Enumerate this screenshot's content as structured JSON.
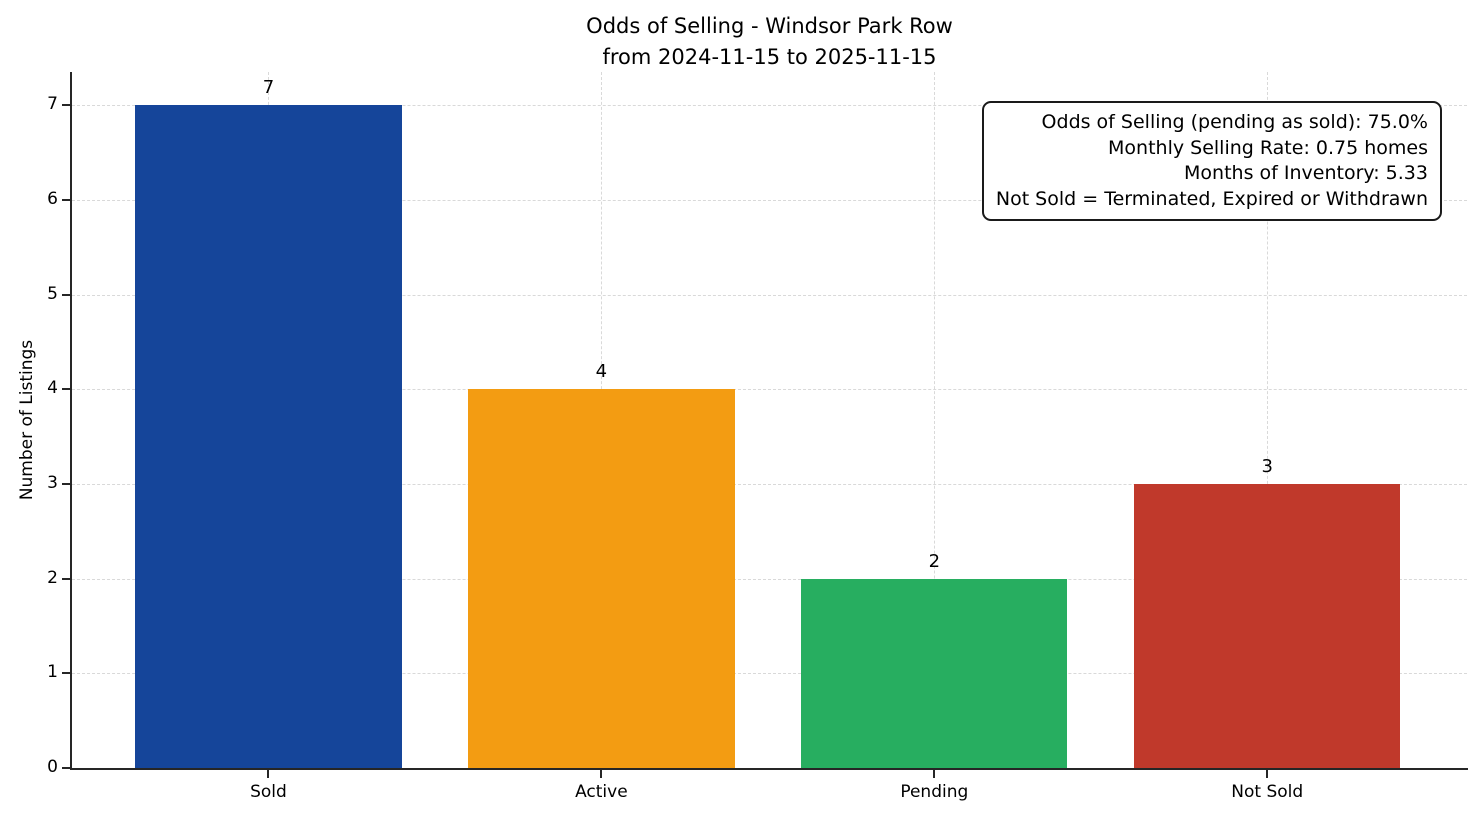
{
  "figure": {
    "title": "Odds of Selling - Windsor Park Row",
    "subtitle": "from 2024-11-15 to 2025-11-15",
    "ylabel": "Number of Listings"
  },
  "annotation": {
    "lines": [
      "Odds of Selling (pending as sold): 75.0%",
      "Monthly Selling Rate: 0.75 homes",
      "Months of Inventory: 5.33",
      "Not Sold = Terminated, Expired or Withdrawn"
    ]
  },
  "chart_data": {
    "type": "bar",
    "title": "Odds of Selling - Windsor Park Row from 2024-11-15 to 2025-11-15",
    "categories": [
      "Sold",
      "Active",
      "Pending",
      "Not Sold"
    ],
    "values": [
      7,
      4,
      2,
      3
    ],
    "bar_colors": [
      "#15459a",
      "#f39c12",
      "#27ae60",
      "#c0392b"
    ],
    "xlabel": "",
    "ylabel": "Number of Listings",
    "ylim": [
      0,
      7.35
    ],
    "yticks": [
      0,
      1,
      2,
      3,
      4,
      5,
      6,
      7
    ],
    "grid": "dashed gridlines on both axes",
    "legend": "none",
    "value_labels": true,
    "annotation_lines": [
      "Odds of Selling (pending as sold): 75.0%",
      "Monthly Selling Rate: 0.75 homes",
      "Months of Inventory: 5.33",
      "Not Sold = Terminated, Expired or Withdrawn"
    ],
    "colors": {
      "background": "#ffffff",
      "text": "#000000",
      "spine": "#262626",
      "grid": "#d9d9d9"
    }
  }
}
